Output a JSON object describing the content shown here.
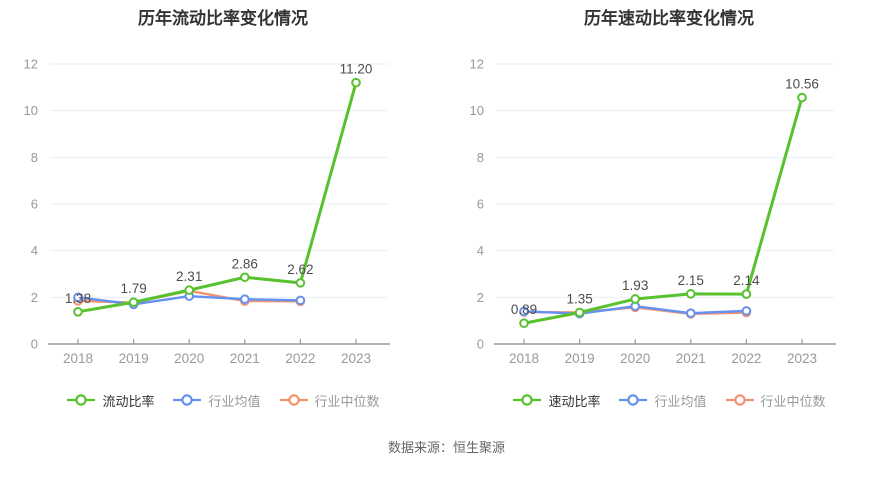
{
  "footer": {
    "source_note": "数据来源：恒生聚源"
  },
  "colors": {
    "main_green": "#57C22E",
    "mean_blue": "#6592EF",
    "median_orange": "#F5926E",
    "grid": "#E9EEF6",
    "axis_line": "#999999",
    "tick_text": "#999999",
    "data_label": "#4D4D4D",
    "title_text": "#333333",
    "source_text": "#666666",
    "background": "#FFFFFF"
  },
  "chart_data": [
    {
      "type": "line",
      "title": "历年流动比率变化情况",
      "categories": [
        "2018",
        "2019",
        "2020",
        "2021",
        "2022",
        "2023"
      ],
      "xlabel": "",
      "ylabel": "",
      "ylim": [
        0,
        12
      ],
      "yticks": [
        0,
        2,
        4,
        6,
        8,
        10,
        12
      ],
      "grid": true,
      "legend_position": "bottom",
      "series": [
        {
          "id": "current-ratio",
          "name": "流动比率",
          "color": "#57C22E",
          "line_width": 3,
          "legend_text_color": "#333333",
          "values": [
            1.38,
            1.79,
            2.31,
            2.86,
            2.62,
            11.2
          ],
          "labels": [
            "1.38",
            "1.79",
            "2.31",
            "2.86",
            "2.62",
            "11.20"
          ]
        },
        {
          "id": "industry-mean",
          "name": "行业均值",
          "color": "#6592EF",
          "line_width": 2.4,
          "legend_text_color": "#999999",
          "values": [
            2.0,
            1.7,
            2.05,
            1.92,
            1.87,
            null
          ]
        },
        {
          "id": "industry-median",
          "name": "行业中位数",
          "color": "#F5926E",
          "line_width": 2.4,
          "legend_text_color": "#999999",
          "values": [
            1.85,
            1.77,
            2.28,
            1.84,
            1.83,
            null
          ]
        }
      ]
    },
    {
      "type": "line",
      "title": "历年速动比率变化情况",
      "categories": [
        "2018",
        "2019",
        "2020",
        "2021",
        "2022",
        "2023"
      ],
      "xlabel": "",
      "ylabel": "",
      "ylim": [
        0,
        12
      ],
      "yticks": [
        0,
        2,
        4,
        6,
        8,
        10,
        12
      ],
      "grid": true,
      "legend_position": "bottom",
      "series": [
        {
          "id": "quick-ratio",
          "name": "速动比率",
          "color": "#57C22E",
          "line_width": 3,
          "legend_text_color": "#333333",
          "values": [
            0.89,
            1.35,
            1.93,
            2.15,
            2.14,
            10.56
          ],
          "labels": [
            "0.89",
            "1.35",
            "1.93",
            "2.15",
            "2.14",
            "10.56"
          ]
        },
        {
          "id": "industry-mean",
          "name": "行业均值",
          "color": "#6592EF",
          "line_width": 2.4,
          "legend_text_color": "#999999",
          "values": [
            1.4,
            1.3,
            1.62,
            1.32,
            1.42,
            null
          ]
        },
        {
          "id": "industry-median",
          "name": "行业中位数",
          "color": "#F5926E",
          "line_width": 2.4,
          "legend_text_color": "#999999",
          "values": [
            1.37,
            1.35,
            1.57,
            1.29,
            1.35,
            null
          ]
        }
      ]
    }
  ]
}
